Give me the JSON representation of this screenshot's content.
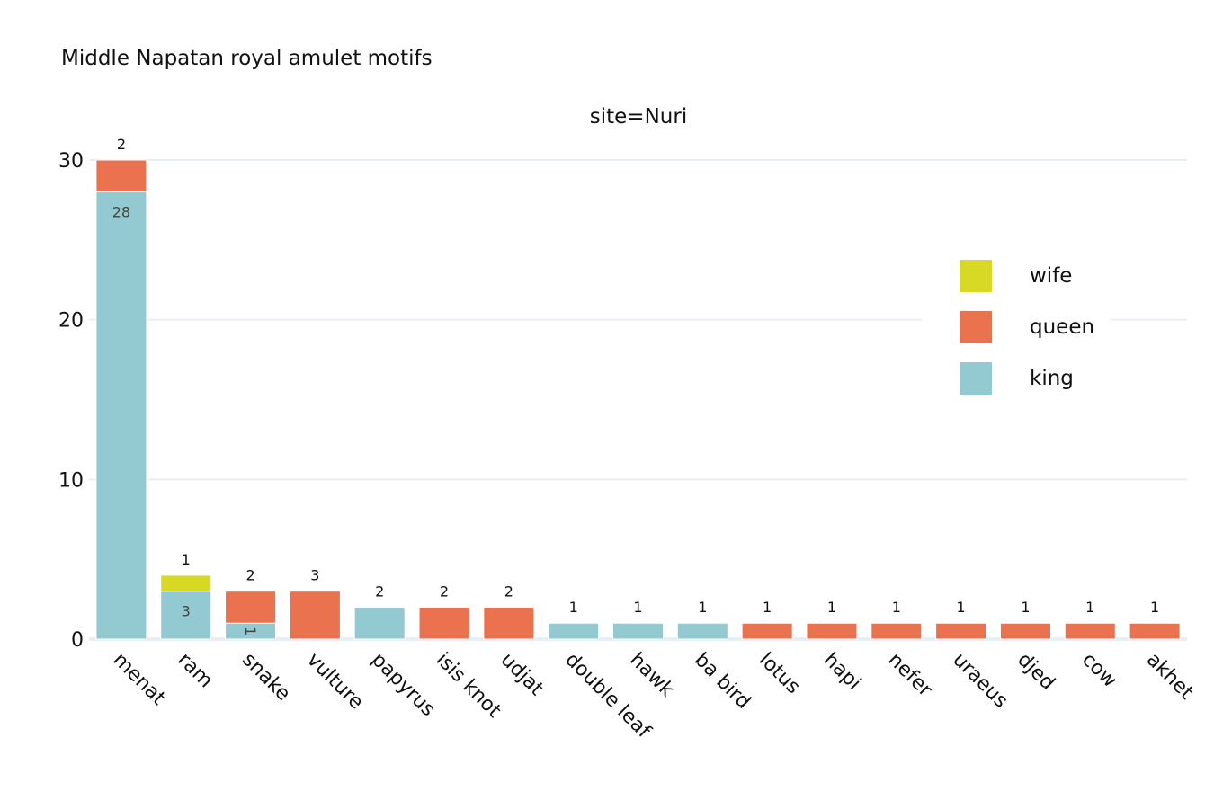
{
  "title": "Middle Napatan royal amulet motifs",
  "facet_label": "site=Nuri",
  "colors": {
    "king": "#93cad2",
    "queen": "#ea724e",
    "wife": "#d7d924",
    "grid": "#e8eef7"
  },
  "legend": [
    {
      "name": "wife",
      "color": "#d7d924"
    },
    {
      "name": "queen",
      "color": "#ea724e"
    },
    {
      "name": "king",
      "color": "#93cad2"
    }
  ],
  "chart_data": {
    "type": "bar",
    "barmode": "stack",
    "title": "Middle Napatan royal amulet motifs",
    "facet": "site=Nuri",
    "categories": [
      "menat",
      "ram",
      "snake",
      "vulture",
      "papyrus",
      "isis knot",
      "udjat",
      "double leaf",
      "hawk",
      "ba bird",
      "lotus",
      "hapi",
      "nefer",
      "uraeus",
      "djed",
      "cow",
      "akhet"
    ],
    "series": [
      {
        "name": "king",
        "color": "#93cad2",
        "values": [
          28,
          3,
          1,
          0,
          2,
          0,
          0,
          1,
          1,
          1,
          0,
          0,
          0,
          0,
          0,
          0,
          0
        ]
      },
      {
        "name": "queen",
        "color": "#ea724e",
        "values": [
          2,
          0,
          2,
          3,
          0,
          2,
          2,
          0,
          0,
          0,
          1,
          1,
          1,
          1,
          1,
          1,
          1
        ]
      },
      {
        "name": "wife",
        "color": "#d7d924",
        "values": [
          0,
          1,
          0,
          0,
          0,
          0,
          0,
          0,
          0,
          0,
          0,
          0,
          0,
          0,
          0,
          0,
          0
        ]
      }
    ],
    "yticks": [
      0,
      10,
      20,
      30
    ],
    "ylim": [
      0,
      30
    ],
    "grid": true,
    "legend_position": "right",
    "xlabel": "",
    "ylabel": ""
  }
}
